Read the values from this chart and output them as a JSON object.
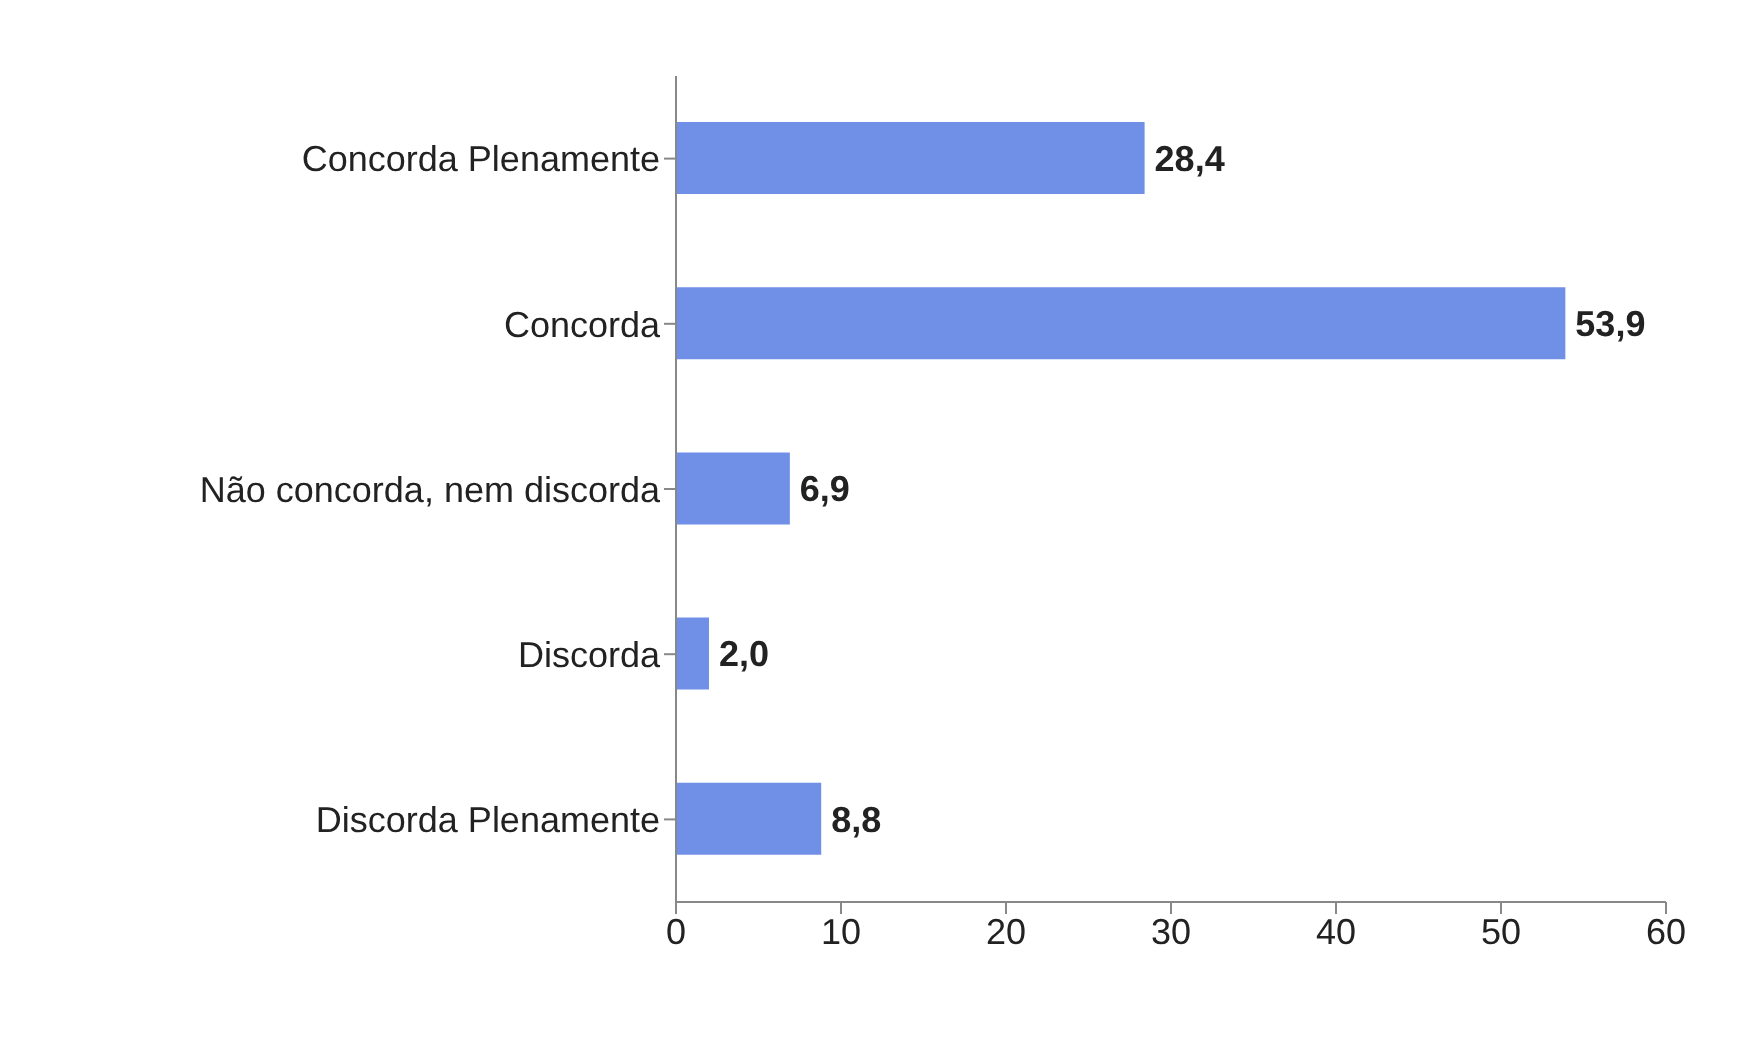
{
  "chart_data": {
    "type": "bar",
    "orientation": "horizontal",
    "categories": [
      "Concorda  Plenamente",
      "Concorda",
      "Não concorda, nem discorda",
      "Discorda",
      "Discorda Plenamente"
    ],
    "values": [
      28.4,
      53.9,
      6.9,
      2.0,
      8.8
    ],
    "value_labels": [
      "28,4",
      "53,9",
      "6,9",
      "2,0",
      "8,8"
    ],
    "color": "#7090e8",
    "xlim": [
      0,
      60
    ],
    "xticks": [
      0,
      10,
      20,
      30,
      40,
      50,
      60
    ],
    "grid": false
  }
}
